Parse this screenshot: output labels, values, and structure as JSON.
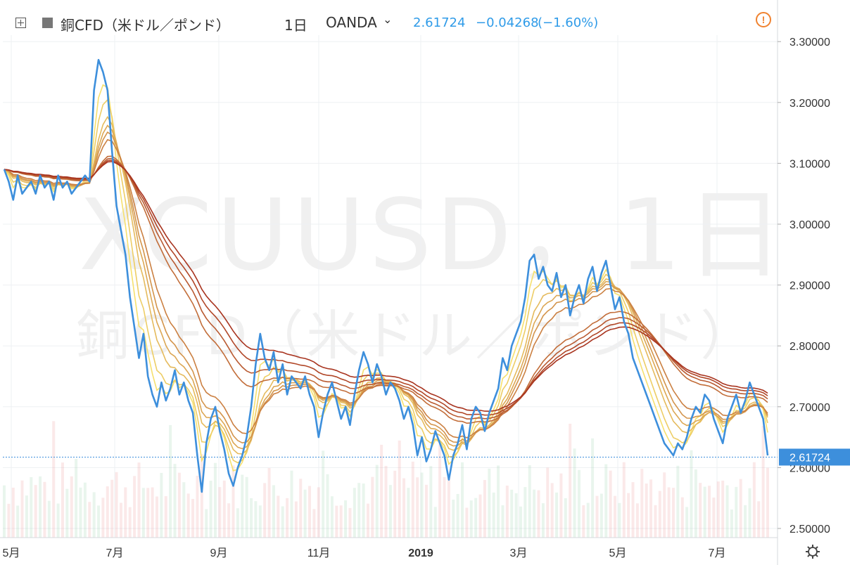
{
  "header": {
    "symbol": "銅CFD（米ドル／ポンド）",
    "interval": "1日",
    "exchange": "OANDA",
    "price": "2.61724",
    "change": "−0.04268",
    "change_pct": "(−1.60%)"
  },
  "watermark": {
    "line1": "XCUUSD，1日",
    "line2": "銅CFD（米ドル／ポンド）"
  },
  "colors": {
    "price_line": "#3d8fdc",
    "ema_fast": "#f6e06e",
    "ema_slow": "#a8341f",
    "label_bg": "#3d8fdc"
  },
  "chart_data": {
    "type": "line",
    "title": "",
    "xlabel": "",
    "ylabel": "",
    "ylim": [
      2.48,
      3.34
    ],
    "grid": true,
    "x_ticks": [
      "5月",
      "7月",
      "9月",
      "11月",
      "2019",
      "3月",
      "5月",
      "7月"
    ],
    "y_ticks": [
      "2.50000",
      "2.60000",
      "2.70000",
      "2.80000",
      "2.90000",
      "3.00000",
      "3.10000",
      "3.20000",
      "3.30000"
    ],
    "last_price_label": "2.61724",
    "last_price": 2.61724,
    "series": [
      {
        "values": [
          3.09,
          3.07,
          3.04,
          3.08,
          3.05,
          3.06,
          3.07,
          3.05,
          3.08,
          3.06,
          3.07,
          3.04,
          3.08,
          3.06,
          3.07,
          3.05,
          3.06,
          3.07,
          3.08,
          3.07,
          3.22,
          3.27,
          3.25,
          3.22,
          3.12,
          3.03,
          2.99,
          2.95,
          2.88,
          2.83,
          2.78,
          2.82,
          2.75,
          2.72,
          2.7,
          2.74,
          2.71,
          2.73,
          2.76,
          2.72,
          2.74,
          2.71,
          2.69,
          2.62,
          2.56,
          2.64,
          2.68,
          2.7,
          2.66,
          2.63,
          2.59,
          2.57,
          2.6,
          2.62,
          2.65,
          2.7,
          2.77,
          2.82,
          2.78,
          2.76,
          2.79,
          2.74,
          2.77,
          2.72,
          2.75,
          2.74,
          2.73,
          2.75,
          2.72,
          2.7,
          2.65,
          2.69,
          2.72,
          2.74,
          2.71,
          2.68,
          2.7,
          2.67,
          2.72,
          2.76,
          2.79,
          2.77,
          2.74,
          2.77,
          2.75,
          2.72,
          2.74,
          2.73,
          2.71,
          2.68,
          2.7,
          2.67,
          2.62,
          2.65,
          2.61,
          2.63,
          2.66,
          2.64,
          2.62,
          2.58,
          2.62,
          2.64,
          2.67,
          2.63,
          2.68,
          2.7,
          2.69,
          2.66,
          2.69,
          2.71,
          2.73,
          2.78,
          2.76,
          2.8,
          2.82,
          2.84,
          2.88,
          2.94,
          2.95,
          2.91,
          2.93,
          2.9,
          2.89,
          2.92,
          2.88,
          2.9,
          2.85,
          2.88,
          2.9,
          2.87,
          2.91,
          2.93,
          2.89,
          2.92,
          2.94,
          2.9,
          2.86,
          2.88,
          2.84,
          2.82,
          2.78,
          2.76,
          2.74,
          2.72,
          2.7,
          2.68,
          2.66,
          2.64,
          2.63,
          2.62,
          2.64,
          2.63,
          2.65,
          2.68,
          2.7,
          2.69,
          2.72,
          2.71,
          2.68,
          2.66,
          2.64,
          2.68,
          2.7,
          2.72,
          2.69,
          2.71,
          2.74,
          2.72,
          2.7,
          2.68,
          2.62
        ]
      }
    ],
    "ema_periods": [
      3,
      5,
      8,
      10,
      12,
      15,
      30,
      35,
      40,
      45
    ]
  },
  "time_axis": {
    "settings_icon": "gear-icon"
  }
}
